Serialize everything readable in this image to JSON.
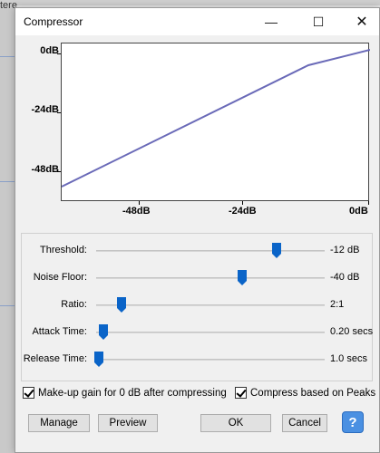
{
  "background": {
    "partial_text": "tere"
  },
  "dialog": {
    "title": "Compressor",
    "window_buttons": {
      "minimize": "—",
      "maximize": "☐",
      "close": "✕"
    }
  },
  "graph": {
    "y_labels": [
      "0dB",
      "-24dB",
      "-48dB"
    ],
    "x_labels": [
      "-48dB",
      "-24dB",
      "0dB"
    ],
    "curve_color": "#6a6ab8"
  },
  "controls": [
    {
      "label": "Threshold:",
      "value": "-12 dB",
      "position": 0.79
    },
    {
      "label": "Noise Floor:",
      "value": "-40 dB",
      "position": 0.64
    },
    {
      "label": "Ratio:",
      "value": "2:1",
      "position": 0.11
    },
    {
      "label": "Attack Time:",
      "value": "0.20 secs",
      "position": 0.03
    },
    {
      "label": "Release Time:",
      "value": "1.0 secs",
      "position": 0.01
    }
  ],
  "checkboxes": {
    "makeup": {
      "label": "Make-up gain for 0 dB after compressing",
      "checked": true
    },
    "peaks": {
      "label": "Compress based on Peaks",
      "checked": true
    }
  },
  "buttons": {
    "manage": "Manage",
    "preview": "Preview",
    "ok": "OK",
    "cancel": "Cancel",
    "help": "?"
  },
  "colors": {
    "thumb": "#0a64c8",
    "help": "#4a90e2"
  }
}
